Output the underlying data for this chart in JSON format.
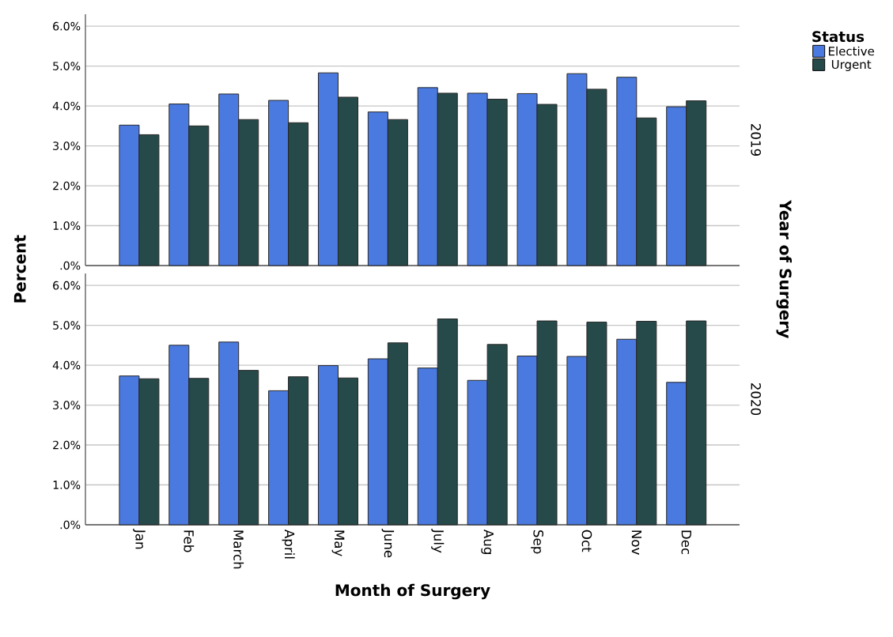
{
  "chart_data": [
    {
      "type": "bar",
      "y2label": "2019",
      "ylabel": "Percent",
      "annotations": [
        "Year of Surgery"
      ],
      "legend_title": "Status",
      "legend": "top right",
      "grid": "y",
      "tick_labels": "y",
      "categories": [
        null,
        null,
        null,
        null,
        null,
        null,
        null,
        null,
        null,
        null,
        null,
        null
      ],
      "series": [
        {
          "name": "Elective",
          "color": "#4a7ae0",
          "values": [
            3.52,
            4.05,
            4.3,
            4.14,
            4.83,
            3.85,
            4.46,
            4.32,
            4.31,
            4.81,
            4.72,
            3.98
          ]
        },
        {
          "name": "Urgent",
          "color": "#264a4a",
          "values": [
            3.28,
            3.5,
            3.66,
            3.58,
            4.22,
            3.66,
            4.32,
            4.17,
            4.04,
            4.42,
            3.7,
            4.13
          ]
        }
      ],
      "ylim": [
        0,
        6.3
      ],
      "yticks": [
        {
          "value": 0,
          "label": ".0%"
        },
        {
          "value": 1,
          "label": "1.0%"
        },
        {
          "value": 2,
          "label": "2.0%"
        },
        {
          "value": 3,
          "label": "3.0%"
        },
        {
          "value": 4,
          "label": "4.0%"
        },
        {
          "value": 5,
          "label": "5.0%"
        },
        {
          "value": 6,
          "label": "6.0%"
        }
      ]
    },
    {
      "type": "bar",
      "y2label": "2020",
      "xlabel": "Month of Surgery",
      "grid": "y",
      "categories": [
        "Jan",
        "Feb",
        "March",
        "April",
        "May",
        "June",
        "July",
        "Aug",
        "Sep",
        "Oct",
        "Nov",
        "Dec"
      ],
      "series": [
        {
          "color": "#4a7ae0",
          "values": [
            3.73,
            4.5,
            4.58,
            3.36,
            3.99,
            4.16,
            3.93,
            3.62,
            4.23,
            4.22,
            4.65,
            3.57
          ]
        },
        {
          "color": "#264a4a",
          "values": [
            3.66,
            3.67,
            3.87,
            3.71,
            3.68,
            4.56,
            5.16,
            4.52,
            5.11,
            5.08,
            5.1,
            5.11
          ]
        }
      ],
      "ylim": [
        0,
        6.3
      ],
      "yticks": [
        {
          "value": 0,
          "label": ".0%"
        },
        {
          "value": 1,
          "label": "1.0%"
        },
        {
          "value": 2,
          "label": "2.0%"
        },
        {
          "value": 3,
          "label": "3.0%"
        },
        {
          "value": 4,
          "label": "4.0%"
        },
        {
          "value": 5,
          "label": "5.0%"
        },
        {
          "value": 6,
          "label": "6.0%"
        }
      ]
    }
  ]
}
